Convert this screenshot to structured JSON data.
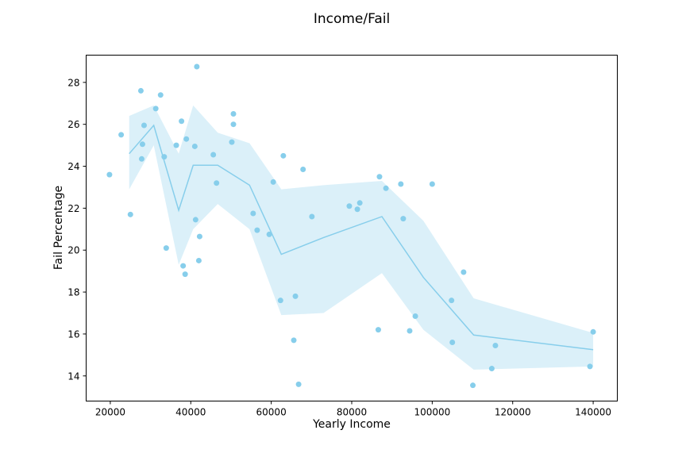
{
  "chart_data": {
    "type": "scatter",
    "title": "Income/Fail",
    "xlabel": "Yearly Income",
    "ylabel": "Fail Percentage",
    "xlim": [
      14000,
      146000
    ],
    "ylim": [
      12.8,
      29.3
    ],
    "xticks": [
      20000,
      40000,
      60000,
      80000,
      100000,
      120000,
      140000
    ],
    "yticks": [
      14,
      16,
      18,
      20,
      22,
      24,
      26,
      28
    ],
    "grid": false,
    "legend": "none",
    "colors": {
      "points": "#87ceeb",
      "line": "#87ceeb",
      "band": "#87ceeb"
    },
    "points": [
      {
        "x": 19800,
        "y": 23.6
      },
      {
        "x": 22700,
        "y": 25.5
      },
      {
        "x": 25000,
        "y": 21.7
      },
      {
        "x": 27600,
        "y": 27.6
      },
      {
        "x": 27800,
        "y": 24.35
      },
      {
        "x": 28000,
        "y": 25.05
      },
      {
        "x": 28400,
        "y": 25.95
      },
      {
        "x": 31300,
        "y": 26.75
      },
      {
        "x": 32500,
        "y": 27.4
      },
      {
        "x": 33400,
        "y": 24.45
      },
      {
        "x": 33900,
        "y": 20.1
      },
      {
        "x": 36400,
        "y": 25.0
      },
      {
        "x": 37700,
        "y": 26.15
      },
      {
        "x": 38100,
        "y": 19.25
      },
      {
        "x": 38600,
        "y": 18.85
      },
      {
        "x": 38900,
        "y": 25.3
      },
      {
        "x": 41000,
        "y": 24.95
      },
      {
        "x": 41200,
        "y": 21.45
      },
      {
        "x": 41500,
        "y": 28.75
      },
      {
        "x": 42000,
        "y": 19.5
      },
      {
        "x": 42200,
        "y": 20.65
      },
      {
        "x": 45600,
        "y": 24.55
      },
      {
        "x": 46400,
        "y": 23.2
      },
      {
        "x": 50200,
        "y": 25.15
      },
      {
        "x": 50600,
        "y": 26.5
      },
      {
        "x": 50600,
        "y": 26.0
      },
      {
        "x": 55500,
        "y": 21.75
      },
      {
        "x": 56500,
        "y": 20.95
      },
      {
        "x": 59500,
        "y": 20.75
      },
      {
        "x": 60500,
        "y": 23.25
      },
      {
        "x": 62300,
        "y": 17.6
      },
      {
        "x": 63000,
        "y": 24.5
      },
      {
        "x": 65600,
        "y": 15.7
      },
      {
        "x": 66000,
        "y": 17.8
      },
      {
        "x": 66800,
        "y": 13.6
      },
      {
        "x": 67900,
        "y": 23.85
      },
      {
        "x": 70100,
        "y": 21.6
      },
      {
        "x": 79400,
        "y": 22.1
      },
      {
        "x": 81400,
        "y": 21.95
      },
      {
        "x": 82000,
        "y": 22.25
      },
      {
        "x": 86600,
        "y": 16.2
      },
      {
        "x": 86900,
        "y": 23.5
      },
      {
        "x": 88500,
        "y": 22.95
      },
      {
        "x": 92200,
        "y": 23.15
      },
      {
        "x": 92800,
        "y": 21.5
      },
      {
        "x": 94400,
        "y": 16.15
      },
      {
        "x": 95800,
        "y": 16.85
      },
      {
        "x": 100000,
        "y": 23.15
      },
      {
        "x": 104800,
        "y": 17.6
      },
      {
        "x": 105000,
        "y": 15.6
      },
      {
        "x": 107800,
        "y": 18.95
      },
      {
        "x": 110100,
        "y": 13.55
      },
      {
        "x": 114800,
        "y": 14.35
      },
      {
        "x": 115700,
        "y": 15.45
      },
      {
        "x": 139200,
        "y": 14.45
      },
      {
        "x": 140000,
        "y": 16.1
      }
    ],
    "trend": [
      {
        "x": 24700,
        "y": 24.6,
        "low": 22.9,
        "high": 26.4
      },
      {
        "x": 30800,
        "y": 25.95,
        "low": 25.0,
        "high": 26.9
      },
      {
        "x": 37000,
        "y": 21.9,
        "low": 19.3,
        "high": 24.6
      },
      {
        "x": 40600,
        "y": 24.05,
        "low": 21.0,
        "high": 26.9
      },
      {
        "x": 46700,
        "y": 24.05,
        "low": 22.2,
        "high": 25.6
      },
      {
        "x": 54600,
        "y": 23.1,
        "low": 21.0,
        "high": 25.1
      },
      {
        "x": 62500,
        "y": 19.8,
        "low": 16.9,
        "high": 22.9
      },
      {
        "x": 73000,
        "y": 20.6,
        "low": 17.0,
        "high": 23.1
      },
      {
        "x": 87500,
        "y": 21.6,
        "low": 18.9,
        "high": 23.3
      },
      {
        "x": 97800,
        "y": 18.7,
        "low": 16.2,
        "high": 21.4
      },
      {
        "x": 110300,
        "y": 15.95,
        "low": 14.3,
        "high": 17.7
      },
      {
        "x": 140000,
        "y": 15.25,
        "low": 14.45,
        "high": 16.05
      }
    ]
  }
}
